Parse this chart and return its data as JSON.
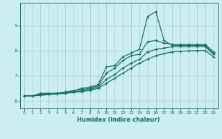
{
  "xlabel": "Humidex (Indice chaleur)",
  "bg_color": "#cceef0",
  "grid_color": "#aad4d8",
  "line_color": "#1a6e6a",
  "xlim": [
    -0.5,
    23.5
  ],
  "ylim": [
    5.7,
    9.9
  ],
  "xticks": [
    0,
    1,
    2,
    3,
    4,
    5,
    6,
    7,
    8,
    9,
    10,
    11,
    12,
    13,
    14,
    15,
    16,
    17,
    18,
    19,
    20,
    21,
    22,
    23
  ],
  "yticks": [
    6,
    7,
    8,
    9
  ],
  "series": [
    {
      "x": [
        0,
        1,
        2,
        3,
        4,
        5,
        6,
        7,
        8,
        9,
        10,
        11,
        12,
        13,
        14,
        15,
        16,
        17,
        18,
        19,
        20,
        21,
        22,
        23
      ],
      "y": [
        6.2,
        6.2,
        6.3,
        6.3,
        6.3,
        6.35,
        6.4,
        6.5,
        6.55,
        6.65,
        7.35,
        7.4,
        7.75,
        7.9,
        8.05,
        9.35,
        9.55,
        8.4,
        8.2,
        8.2,
        8.2,
        8.2,
        8.2,
        7.9
      ]
    },
    {
      "x": [
        0,
        1,
        2,
        3,
        4,
        5,
        6,
        7,
        8,
        9,
        10,
        11,
        12,
        13,
        14,
        15,
        16,
        17,
        18,
        19,
        20,
        21,
        22,
        23
      ],
      "y": [
        6.2,
        6.2,
        6.25,
        6.28,
        6.3,
        6.35,
        6.4,
        6.45,
        6.5,
        6.6,
        7.1,
        7.3,
        7.6,
        7.8,
        7.85,
        8.35,
        8.4,
        8.3,
        8.25,
        8.25,
        8.25,
        8.25,
        8.25,
        7.95
      ]
    },
    {
      "x": [
        0,
        1,
        2,
        3,
        4,
        5,
        6,
        7,
        8,
        9,
        10,
        11,
        12,
        13,
        14,
        15,
        16,
        17,
        18,
        19,
        20,
        21,
        22,
        23
      ],
      "y": [
        6.2,
        6.2,
        6.25,
        6.28,
        6.3,
        6.32,
        6.35,
        6.4,
        6.45,
        6.55,
        6.85,
        7.05,
        7.3,
        7.5,
        7.65,
        7.95,
        8.05,
        8.1,
        8.15,
        8.15,
        8.15,
        8.15,
        8.15,
        7.85
      ]
    },
    {
      "x": [
        0,
        1,
        2,
        3,
        4,
        5,
        6,
        7,
        8,
        9,
        10,
        11,
        12,
        13,
        14,
        15,
        16,
        17,
        18,
        19,
        20,
        21,
        22,
        23
      ],
      "y": [
        6.2,
        6.2,
        6.22,
        6.25,
        6.27,
        6.3,
        6.33,
        6.37,
        6.42,
        6.5,
        6.7,
        6.9,
        7.1,
        7.3,
        7.5,
        7.65,
        7.8,
        7.88,
        7.95,
        7.97,
        7.99,
        8.0,
        8.0,
        7.75
      ]
    }
  ]
}
